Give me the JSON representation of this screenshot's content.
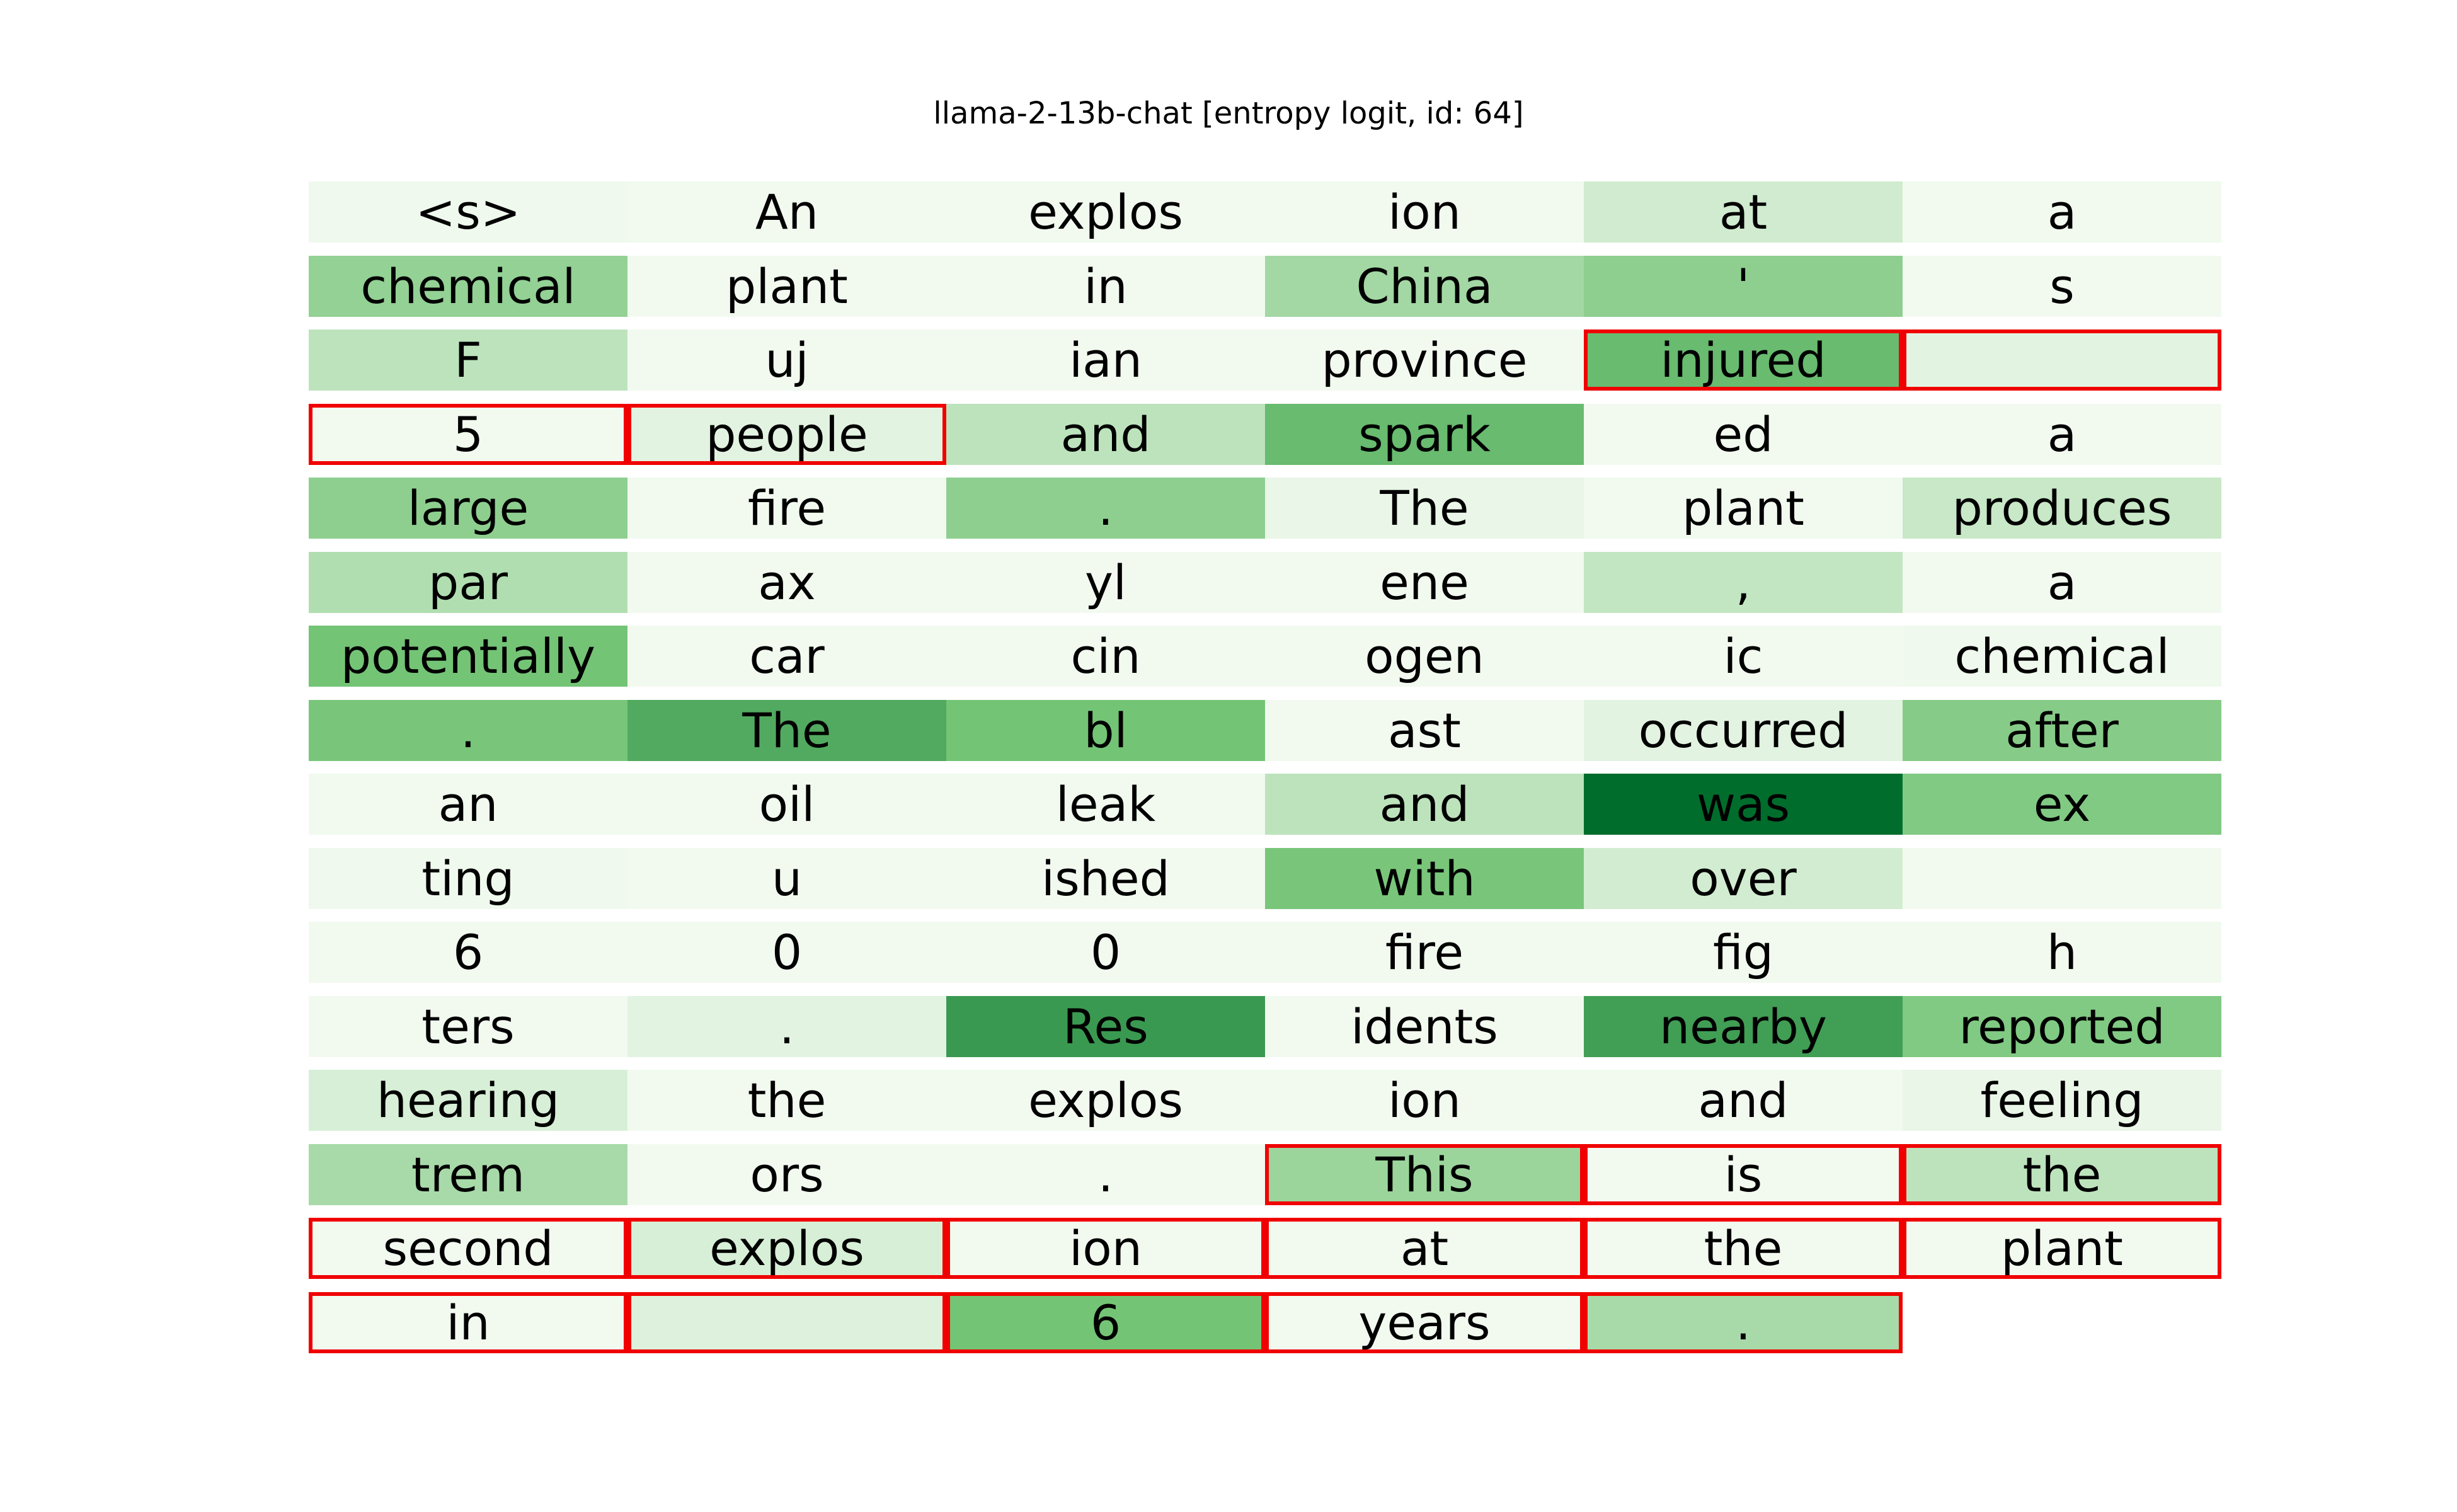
{
  "chart_data": {
    "type": "heatmap",
    "title": "llama-2-13b-chat [entropy logit, id: 64]",
    "columns": 6,
    "color_scale": {
      "low": "#f7fcf5",
      "high": "#00441b",
      "name": "Greens"
    },
    "highlight_color": "#ff0000",
    "cells": [
      {
        "token": "<s>",
        "value": 0.03,
        "highlighted": false
      },
      {
        "token": "An",
        "value": 0.02,
        "highlighted": false
      },
      {
        "token": "explos",
        "value": 0.02,
        "highlighted": false
      },
      {
        "token": "ion",
        "value": 0.02,
        "highlighted": false
      },
      {
        "token": "at",
        "value": 0.15,
        "highlighted": false
      },
      {
        "token": "a",
        "value": 0.02,
        "highlighted": false
      },
      {
        "token": "chemical",
        "value": 0.38,
        "highlighted": false
      },
      {
        "token": "plant",
        "value": 0.02,
        "highlighted": false
      },
      {
        "token": "in",
        "value": 0.02,
        "highlighted": false
      },
      {
        "token": "China",
        "value": 0.32,
        "highlighted": false
      },
      {
        "token": "'",
        "value": 0.4,
        "highlighted": false
      },
      {
        "token": "s",
        "value": 0.02,
        "highlighted": false
      },
      {
        "token": "F",
        "value": 0.22,
        "highlighted": false
      },
      {
        "token": "uj",
        "value": 0.02,
        "highlighted": false
      },
      {
        "token": "ian",
        "value": 0.02,
        "highlighted": false
      },
      {
        "token": "province",
        "value": 0.02,
        "highlighted": false
      },
      {
        "token": "injured",
        "value": 0.55,
        "highlighted": true
      },
      {
        "token": "",
        "value": 0.08,
        "highlighted": true
      },
      {
        "token": "5",
        "value": 0.02,
        "highlighted": true
      },
      {
        "token": "people",
        "value": 0.08,
        "highlighted": true
      },
      {
        "token": "and",
        "value": 0.22,
        "highlighted": false
      },
      {
        "token": "spark",
        "value": 0.55,
        "highlighted": false
      },
      {
        "token": "ed",
        "value": 0.02,
        "highlighted": false
      },
      {
        "token": "a",
        "value": 0.02,
        "highlighted": false
      },
      {
        "token": "large",
        "value": 0.4,
        "highlighted": false
      },
      {
        "token": "fire",
        "value": 0.02,
        "highlighted": false
      },
      {
        "token": ".",
        "value": 0.4,
        "highlighted": false
      },
      {
        "token": "The",
        "value": 0.05,
        "highlighted": false
      },
      {
        "token": "plant",
        "value": 0.02,
        "highlighted": false
      },
      {
        "token": "produces",
        "value": 0.18,
        "highlighted": false
      },
      {
        "token": "par",
        "value": 0.27,
        "highlighted": false
      },
      {
        "token": "ax",
        "value": 0.02,
        "highlighted": false
      },
      {
        "token": "yl",
        "value": 0.02,
        "highlighted": false
      },
      {
        "token": "ene",
        "value": 0.02,
        "highlighted": false
      },
      {
        "token": ",",
        "value": 0.2,
        "highlighted": false
      },
      {
        "token": "a",
        "value": 0.02,
        "highlighted": false
      },
      {
        "token": "potentially",
        "value": 0.5,
        "highlighted": false
      },
      {
        "token": "car",
        "value": 0.02,
        "highlighted": false
      },
      {
        "token": "cin",
        "value": 0.02,
        "highlighted": false
      },
      {
        "token": "ogen",
        "value": 0.02,
        "highlighted": false
      },
      {
        "token": "ic",
        "value": 0.02,
        "highlighted": false
      },
      {
        "token": "chemical",
        "value": 0.03,
        "highlighted": false
      },
      {
        "token": ".",
        "value": 0.48,
        "highlighted": false
      },
      {
        "token": "The",
        "value": 0.65,
        "highlighted": false
      },
      {
        "token": "bl",
        "value": 0.5,
        "highlighted": false
      },
      {
        "token": "ast",
        "value": 0.02,
        "highlighted": false
      },
      {
        "token": "occurred",
        "value": 0.08,
        "highlighted": false
      },
      {
        "token": "after",
        "value": 0.43,
        "highlighted": false
      },
      {
        "token": "an",
        "value": 0.02,
        "highlighted": false
      },
      {
        "token": "oil",
        "value": 0.02,
        "highlighted": false
      },
      {
        "token": "leak",
        "value": 0.02,
        "highlighted": false
      },
      {
        "token": "and",
        "value": 0.22,
        "highlighted": false
      },
      {
        "token": "was",
        "value": 1.0,
        "highlighted": false
      },
      {
        "token": "ex",
        "value": 0.45,
        "highlighted": false
      },
      {
        "token": "ting",
        "value": 0.03,
        "highlighted": false
      },
      {
        "token": "u",
        "value": 0.02,
        "highlighted": false
      },
      {
        "token": "ished",
        "value": 0.02,
        "highlighted": false
      },
      {
        "token": "with",
        "value": 0.48,
        "highlighted": false
      },
      {
        "token": "over",
        "value": 0.14,
        "highlighted": false
      },
      {
        "token": "",
        "value": 0.02,
        "highlighted": false
      },
      {
        "token": "6",
        "value": 0.02,
        "highlighted": false
      },
      {
        "token": "0",
        "value": 0.02,
        "highlighted": false
      },
      {
        "token": "0",
        "value": 0.02,
        "highlighted": false
      },
      {
        "token": "fire",
        "value": 0.02,
        "highlighted": false
      },
      {
        "token": "fig",
        "value": 0.02,
        "highlighted": false
      },
      {
        "token": "h",
        "value": 0.02,
        "highlighted": false
      },
      {
        "token": "ters",
        "value": 0.02,
        "highlighted": false
      },
      {
        "token": ".",
        "value": 0.08,
        "highlighted": false
      },
      {
        "token": "Res",
        "value": 0.75,
        "highlighted": false
      },
      {
        "token": "idents",
        "value": 0.02,
        "highlighted": false
      },
      {
        "token": "nearby",
        "value": 0.72,
        "highlighted": false
      },
      {
        "token": "reported",
        "value": 0.45,
        "highlighted": false
      },
      {
        "token": "hearing",
        "value": 0.12,
        "highlighted": false
      },
      {
        "token": "the",
        "value": 0.02,
        "highlighted": false
      },
      {
        "token": "explos",
        "value": 0.02,
        "highlighted": false
      },
      {
        "token": "ion",
        "value": 0.02,
        "highlighted": false
      },
      {
        "token": "and",
        "value": 0.02,
        "highlighted": false
      },
      {
        "token": "feeling",
        "value": 0.05,
        "highlighted": false
      },
      {
        "token": "trem",
        "value": 0.3,
        "highlighted": false
      },
      {
        "token": "ors",
        "value": 0.02,
        "highlighted": false
      },
      {
        "token": ".",
        "value": 0.02,
        "highlighted": false
      },
      {
        "token": "This",
        "value": 0.35,
        "highlighted": true
      },
      {
        "token": "is",
        "value": 0.02,
        "highlighted": true
      },
      {
        "token": "the",
        "value": 0.22,
        "highlighted": true
      },
      {
        "token": "second",
        "value": 0.02,
        "highlighted": true
      },
      {
        "token": "explos",
        "value": 0.12,
        "highlighted": true
      },
      {
        "token": "ion",
        "value": 0.02,
        "highlighted": true
      },
      {
        "token": "at",
        "value": 0.02,
        "highlighted": true
      },
      {
        "token": "the",
        "value": 0.02,
        "highlighted": true
      },
      {
        "token": "plant",
        "value": 0.02,
        "highlighted": true
      },
      {
        "token": "in",
        "value": 0.02,
        "highlighted": true
      },
      {
        "token": "",
        "value": 0.1,
        "highlighted": true
      },
      {
        "token": "6",
        "value": 0.5,
        "highlighted": true
      },
      {
        "token": "years",
        "value": 0.02,
        "highlighted": true
      },
      {
        "token": ".",
        "value": 0.3,
        "highlighted": true
      }
    ]
  }
}
